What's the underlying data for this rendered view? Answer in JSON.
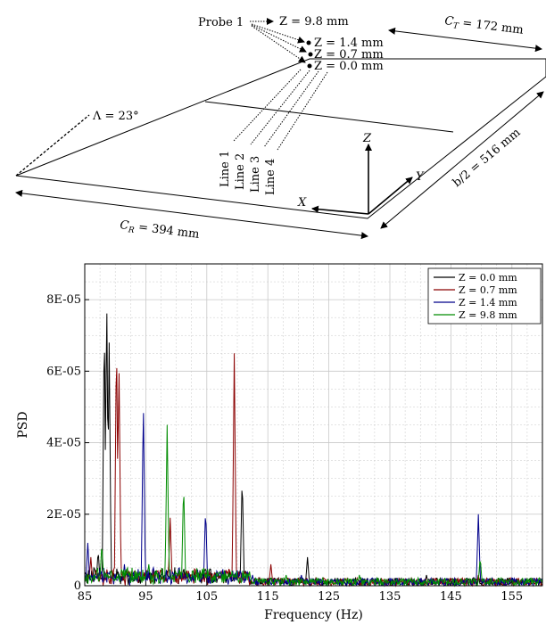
{
  "colors": {
    "z00": "#000000",
    "z07": "#8b0000",
    "z14": "#00008b",
    "z98": "#008c00",
    "grid": "#c8c8c8",
    "axis": "#000000"
  },
  "schematic": {
    "probe_label": "Probe 1",
    "z_labels": [
      "Z = 9.8 mm",
      "Z = 1.4 mm",
      "Z = 0.7 mm",
      "Z = 0.0 mm"
    ],
    "ct_label": "C_T = 172 mm",
    "ct_sym": "C",
    "ct_sub": "T",
    "ct_val": " = 172 mm",
    "sweep_label": "Λ = 23°",
    "lines": [
      "Line 1",
      "Line 2",
      "Line 3",
      "Line 4"
    ],
    "axis_z": "Z",
    "axis_x": "X",
    "axis_y": "Y",
    "span_label": "b/2 = 516 mm",
    "cr_sym": "C",
    "cr_sub": "R",
    "cr_val": " = 394 mm"
  },
  "chart_data": {
    "type": "line",
    "xlabel": "Frequency (Hz)",
    "ylabel": "PSD",
    "xlim": [
      85,
      160
    ],
    "ylim": [
      0,
      9e-05
    ],
    "x_ticks": [
      85,
      95,
      105,
      115,
      125,
      135,
      145,
      155
    ],
    "x_tick_labels": [
      "85",
      "95",
      "105",
      "115",
      "125",
      "135",
      "145",
      "155"
    ],
    "y_ticks": [
      0,
      2e-05,
      4e-05,
      6e-05,
      8e-05
    ],
    "y_tick_labels": [
      "0",
      "2E-05",
      "4E-05",
      "6E-05",
      "8E-05"
    ],
    "grid": true,
    "legend_position": "top-right",
    "series": [
      {
        "name": "Z = 0.0 mm",
        "color_key": "z00",
        "peaks": [
          [
            86.5,
            5e-06
          ],
          [
            87.2,
            1e-05
          ],
          [
            88.2,
            7.6e-05
          ],
          [
            88.6,
            8.2e-05
          ],
          [
            89.0,
            6.8e-05
          ],
          [
            92.5,
            3e-06
          ],
          [
            96.8,
            4e-06
          ],
          [
            103.5,
            3e-06
          ],
          [
            110.8,
            3.1e-05
          ],
          [
            121.5,
            8e-06
          ],
          [
            126.5,
            2e-06
          ],
          [
            133.0,
            2e-06
          ],
          [
            141.0,
            3e-06
          ],
          [
            149.5,
            2e-06
          ],
          [
            155.0,
            2e-06
          ]
        ]
      },
      {
        "name": "Z = 0.7 mm",
        "color_key": "z07",
        "peaks": [
          [
            86.0,
            8e-06
          ],
          [
            90.2,
            7.1e-05
          ],
          [
            90.6,
            6.4e-05
          ],
          [
            93.0,
            3e-06
          ],
          [
            99.0,
            1.9e-05
          ],
          [
            104.0,
            3e-06
          ],
          [
            109.5,
            6.5e-05
          ],
          [
            115.5,
            6e-06
          ],
          [
            120.0,
            2e-06
          ],
          [
            128.0,
            2e-06
          ],
          [
            149.5,
            3e-06
          ]
        ]
      },
      {
        "name": "Z = 1.4 mm",
        "color_key": "z14",
        "peaks": [
          [
            85.5,
            1.2e-05
          ],
          [
            87.5,
            5e-06
          ],
          [
            91.5,
            6e-06
          ],
          [
            94.6,
            5.2e-05
          ],
          [
            100.5,
            5e-06
          ],
          [
            104.8,
            2.2e-05
          ],
          [
            108.0,
            4e-06
          ],
          [
            112.5,
            3e-06
          ],
          [
            120.5,
            3e-06
          ],
          [
            132.0,
            2e-06
          ],
          [
            149.5,
            2e-05
          ]
        ]
      },
      {
        "name": "Z = 9.8 mm",
        "color_key": "z98",
        "peaks": [
          [
            87.8,
            1.2e-05
          ],
          [
            92.0,
            5e-06
          ],
          [
            95.5,
            6e-06
          ],
          [
            98.5,
            4.5e-05
          ],
          [
            101.2,
            2.9e-05
          ],
          [
            104.5,
            5e-06
          ],
          [
            112.0,
            4e-06
          ],
          [
            118.0,
            3e-06
          ],
          [
            124.0,
            2e-06
          ],
          [
            130.0,
            3e-06
          ],
          [
            149.8,
            8e-06
          ]
        ]
      }
    ]
  }
}
